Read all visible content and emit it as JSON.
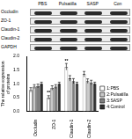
{
  "blot": {
    "columns": [
      "PBS",
      "Pulsatilla",
      "SASP",
      "Con"
    ],
    "rows": [
      "Occludin",
      "ZO-1",
      "Claudin-1",
      "Claudin-2",
      "GAPDH"
    ]
  },
  "chart_data": {
    "type": "bar",
    "y_label": "The relative expression of proteins",
    "categories": [
      "Occludin",
      "ZO-1",
      "Claudin-1",
      "Claudin-2"
    ],
    "series": [
      {
        "name": "1:PBS",
        "color": "#ffffff",
        "values": [
          0.78,
          0.5,
          1.62,
          1.35
        ],
        "errors": [
          0.08,
          0.07,
          0.12,
          0.1
        ]
      },
      {
        "name": "2:Pulsatilla",
        "color": "#c8c8c8",
        "values": [
          0.9,
          0.85,
          1.2,
          1.1
        ],
        "errors": [
          0.07,
          0.08,
          0.1,
          0.08
        ]
      },
      {
        "name": "3:SASP",
        "color": "#808080",
        "values": [
          0.92,
          0.9,
          1.1,
          1.05
        ],
        "errors": [
          0.07,
          0.07,
          0.09,
          0.08
        ]
      },
      {
        "name": "4:Control",
        "color": "#303030",
        "values": [
          1.0,
          1.0,
          1.0,
          1.0
        ],
        "errors": [
          0.06,
          0.06,
          0.06,
          0.06
        ]
      }
    ],
    "ylim": [
      0,
      2
    ],
    "yticks": [
      {
        "value": 0,
        "label": "0.0"
      },
      {
        "value": 0.5,
        "label": "0.5"
      },
      {
        "value": 1,
        "label": "1.0"
      },
      {
        "value": 1.5,
        "label": "1.5"
      },
      {
        "value": 2,
        "label": "2.0"
      }
    ],
    "grid": false,
    "legend": "right",
    "annotations": [
      {
        "text": "**",
        "category": "ZO-1",
        "series": "1:PBS"
      },
      {
        "text": "**",
        "category": "Claudin-1",
        "series": "1:PBS"
      }
    ]
  }
}
